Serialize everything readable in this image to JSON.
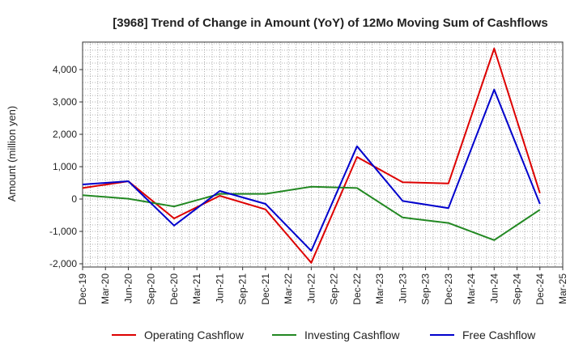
{
  "chart_data": {
    "type": "line",
    "title": "[3968]  Trend of Change in Amount (YoY) of 12Mo Moving Sum of Cashflows",
    "xlabel": "",
    "ylabel": "Amount (million yen)",
    "ylim": [
      -2100,
      4850
    ],
    "yticks": [
      -2000,
      -1000,
      0,
      1000,
      2000,
      3000,
      4000
    ],
    "ytick_labels": [
      "-2,000",
      "-1,000",
      "0",
      "1,000",
      "2,000",
      "3,000",
      "4,000"
    ],
    "categories": [
      "Dec-19",
      "Mar-20",
      "Jun-20",
      "Sep-20",
      "Dec-20",
      "Mar-21",
      "Jun-21",
      "Sep-21",
      "Dec-21",
      "Mar-22",
      "Jun-22",
      "Sep-22",
      "Dec-22",
      "Mar-23",
      "Jun-23",
      "Sep-23",
      "Dec-23",
      "Mar-24",
      "Jun-24",
      "Sep-24",
      "Dec-24",
      "Mar-25"
    ],
    "grid": true,
    "legend_position": "bottom",
    "series": [
      {
        "name": "Operating Cashflow",
        "color": "#dd0000",
        "values": [
          340,
          null,
          550,
          null,
          -600,
          null,
          100,
          null,
          -320,
          null,
          -1970,
          null,
          1300,
          null,
          520,
          null,
          480,
          null,
          4650,
          null,
          180,
          null
        ]
      },
      {
        "name": "Investing Cashflow",
        "color": "#228822",
        "values": [
          120,
          null,
          10,
          null,
          -230,
          null,
          160,
          null,
          160,
          null,
          380,
          null,
          340,
          null,
          -570,
          null,
          -740,
          null,
          -1270,
          null,
          -330,
          null
        ]
      },
      {
        "name": "Free Cashflow",
        "color": "#0000cc",
        "values": [
          450,
          null,
          550,
          null,
          -820,
          null,
          250,
          null,
          -150,
          null,
          -1600,
          null,
          1630,
          null,
          -60,
          null,
          -280,
          null,
          3380,
          null,
          -150,
          null
        ]
      }
    ]
  }
}
